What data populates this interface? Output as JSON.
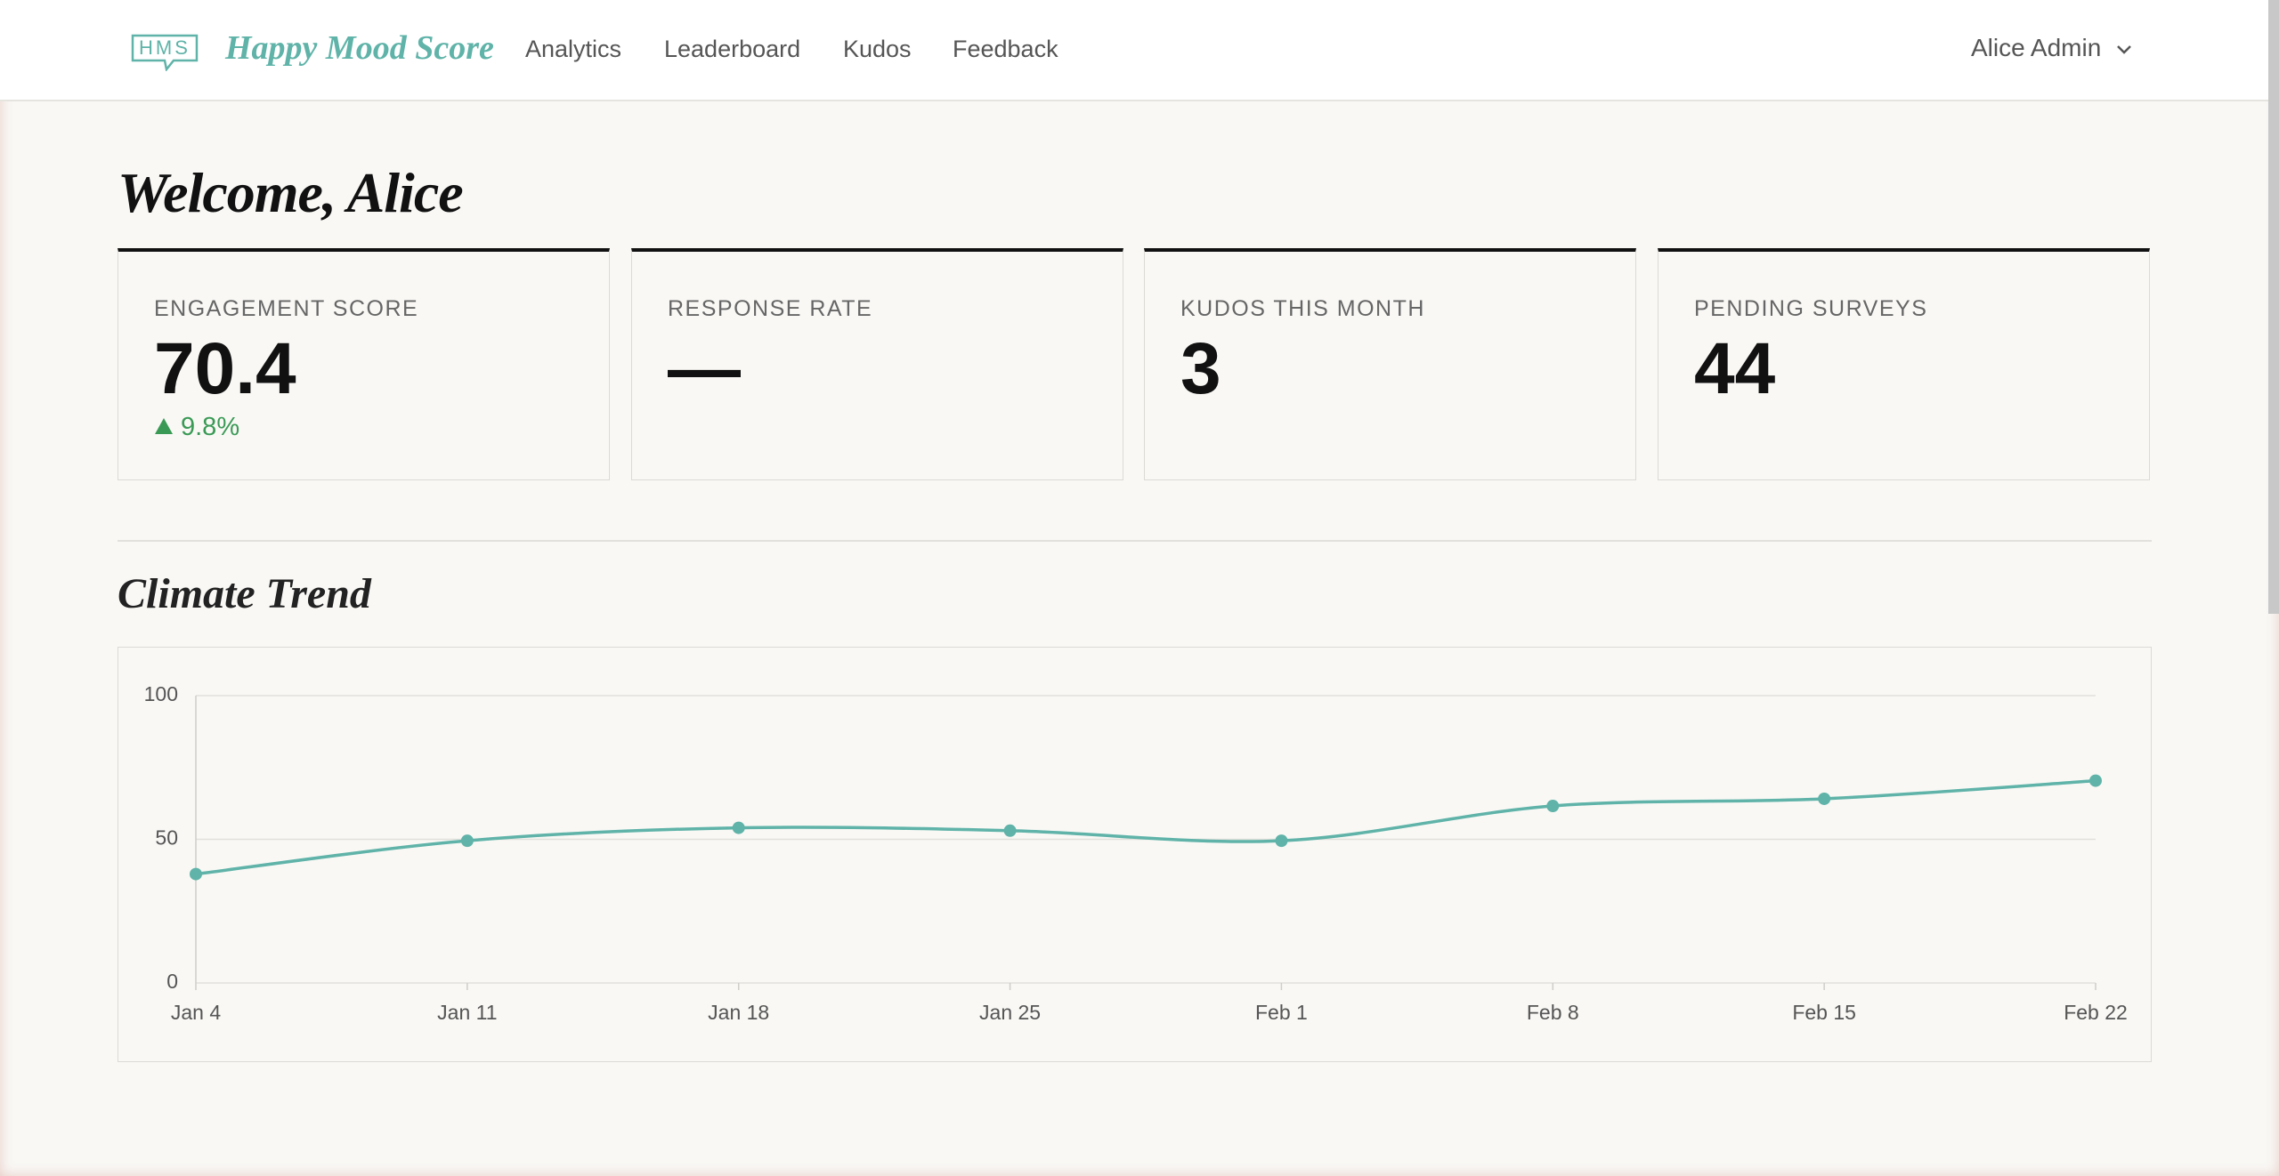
{
  "nav": {
    "logo": "HMS",
    "brand": "Happy Mood Score",
    "links": [
      "Analytics",
      "Leaderboard",
      "Kudos",
      "Feedback"
    ],
    "user": "Alice Admin"
  },
  "header": {
    "title": "Welcome, Alice"
  },
  "cards": [
    {
      "label": "ENGAGEMENT SCORE",
      "value": "70.4",
      "delta": "9.8%"
    },
    {
      "label": "RESPONSE RATE",
      "value": "—"
    },
    {
      "label": "KUDOS THIS MONTH",
      "value": "3"
    },
    {
      "label": "PENDING SURVEYS",
      "value": "44"
    }
  ],
  "section": {
    "title": "Climate Trend"
  },
  "chart_data": {
    "type": "line",
    "categories": [
      "Jan 4",
      "Jan 11",
      "Jan 18",
      "Jan 25",
      "Feb 1",
      "Feb 8",
      "Feb 15",
      "Feb 22"
    ],
    "series": [
      {
        "name": "Climate",
        "color": "#5fb3a8",
        "values": [
          37.9,
          49.5,
          54,
          53,
          49.5,
          61.6,
          64.1,
          70.4
        ]
      }
    ],
    "ylim": [
      0,
      100
    ],
    "yticks": [
      0,
      50,
      100
    ],
    "grid": true,
    "smooth": true
  }
}
